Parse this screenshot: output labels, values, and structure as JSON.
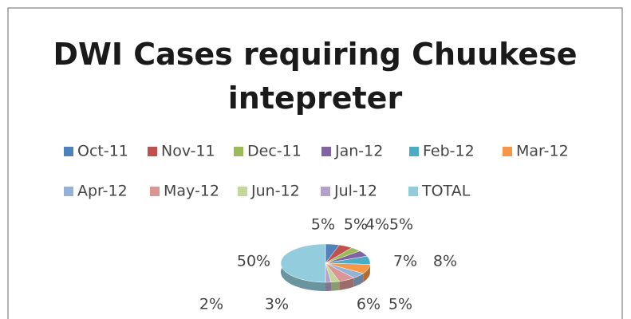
{
  "chart_data": {
    "type": "pie",
    "title": "DWI Cases requiring Chuukese intepreter",
    "categories": [
      "Oct-11",
      "Nov-11",
      "Dec-11",
      "Jan-12",
      "Feb-12",
      "Mar-12",
      "Apr-12",
      "May-12",
      "Jun-12",
      "Jul-12",
      "TOTAL"
    ],
    "values": [
      5,
      5,
      4,
      5,
      7,
      8,
      5,
      6,
      3,
      2,
      50
    ],
    "value_labels": [
      "5%",
      "5%",
      "4%",
      "5%",
      "7%",
      "8%",
      "5%",
      "6%",
      "3%",
      "2%",
      "50%"
    ],
    "colors": [
      "#4f81bd",
      "#c0504d",
      "#9bbb59",
      "#8064a2",
      "#4bacc6",
      "#f79646",
      "#95b3d7",
      "#d99694",
      "#c3d69b",
      "#b3a2c7",
      "#93cddd"
    ],
    "legend": "top"
  }
}
